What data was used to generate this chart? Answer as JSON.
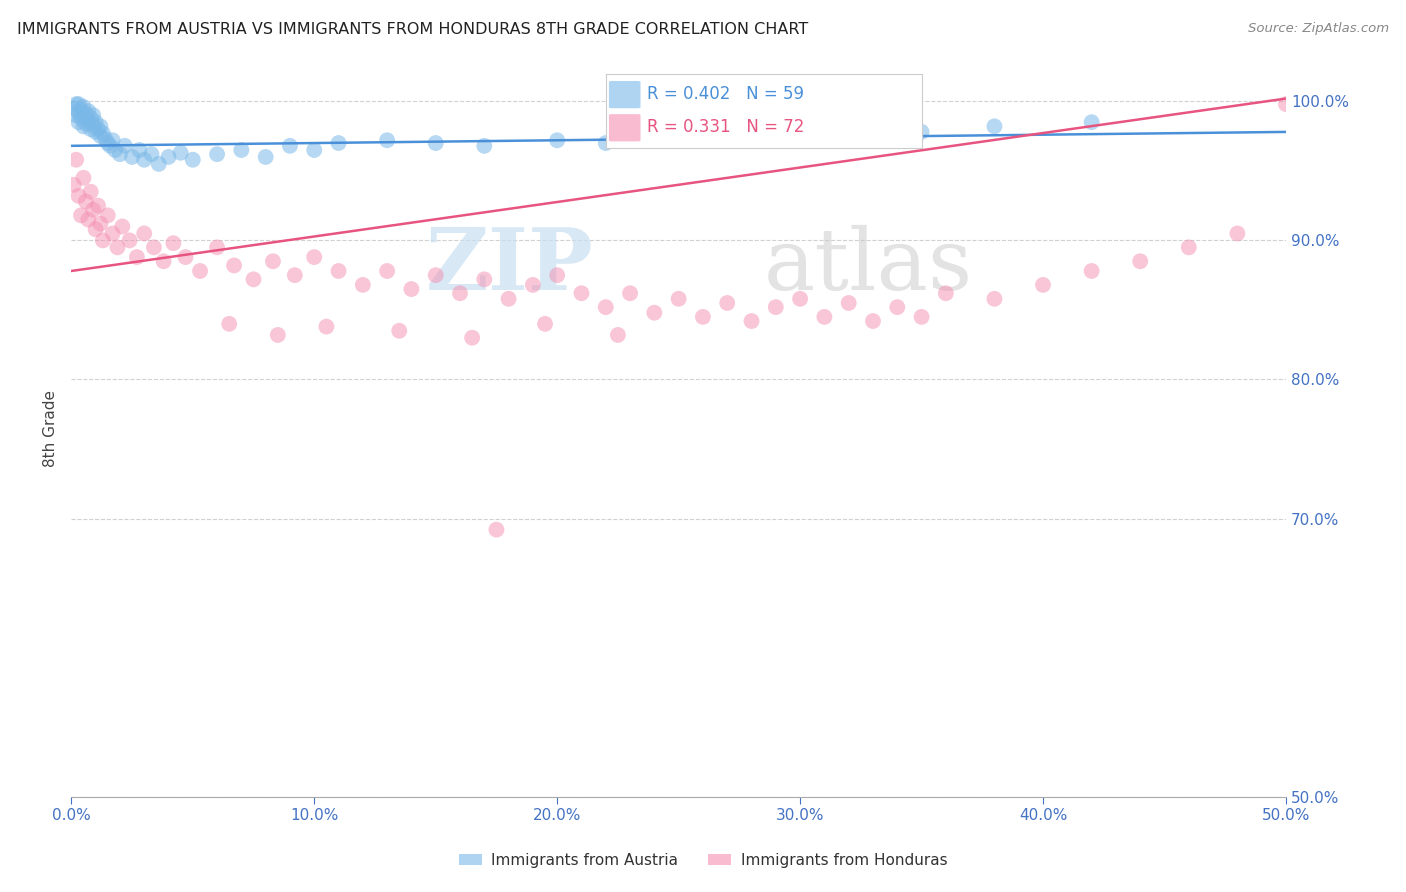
{
  "title": "IMMIGRANTS FROM AUSTRIA VS IMMIGRANTS FROM HONDURAS 8TH GRADE CORRELATION CHART",
  "source": "Source: ZipAtlas.com",
  "ylabel": "8th Grade",
  "austria_color": "#7ab8e8",
  "honduras_color": "#f48fb1",
  "austria_line_color": "#4a90d9",
  "honduras_line_color": "#e75480",
  "watermark_zip": "ZIP",
  "watermark_atlas": "atlas",
  "background_color": "#ffffff",
  "grid_color": "#cccccc",
  "title_color": "#222222",
  "tick_color": "#4472c4",
  "xlim": [
    0.0,
    0.5
  ],
  "ylim": [
    0.5,
    1.03
  ],
  "x_ticks": [
    0.0,
    0.1,
    0.2,
    0.3,
    0.4,
    0.5
  ],
  "y_ticks": [
    0.5,
    0.7,
    0.8,
    0.9,
    1.0
  ],
  "legend_austria_r": "0.402",
  "legend_austria_n": "59",
  "legend_honduras_r": "0.331",
  "legend_honduras_n": "72",
  "austria_line_x0": 0.0,
  "austria_line_x1": 0.5,
  "austria_line_y0": 0.968,
  "austria_line_y1": 0.978,
  "honduras_line_x0": 0.0,
  "honduras_line_x1": 0.5,
  "honduras_line_y0": 0.878,
  "honduras_line_y1": 1.002,
  "austria_scatter_x": [
    0.001,
    0.002,
    0.002,
    0.003,
    0.003,
    0.003,
    0.004,
    0.004,
    0.005,
    0.005,
    0.005,
    0.006,
    0.006,
    0.007,
    0.007,
    0.008,
    0.008,
    0.009,
    0.009,
    0.01,
    0.01,
    0.011,
    0.012,
    0.012,
    0.013,
    0.014,
    0.015,
    0.016,
    0.017,
    0.018,
    0.02,
    0.022,
    0.025,
    0.028,
    0.03,
    0.033,
    0.036,
    0.04,
    0.045,
    0.05,
    0.06,
    0.07,
    0.08,
    0.09,
    0.1,
    0.11,
    0.13,
    0.15,
    0.17,
    0.2,
    0.22,
    0.24,
    0.26,
    0.28,
    0.3,
    0.32,
    0.35,
    0.38,
    0.42
  ],
  "austria_scatter_y": [
    0.995,
    0.99,
    0.998,
    0.985,
    0.992,
    0.998,
    0.988,
    0.994,
    0.982,
    0.99,
    0.996,
    0.984,
    0.991,
    0.986,
    0.993,
    0.98,
    0.988,
    0.983,
    0.99,
    0.978,
    0.985,
    0.98,
    0.975,
    0.982,
    0.977,
    0.973,
    0.97,
    0.968,
    0.972,
    0.965,
    0.962,
    0.968,
    0.96,
    0.965,
    0.958,
    0.962,
    0.955,
    0.96,
    0.963,
    0.958,
    0.962,
    0.965,
    0.96,
    0.968,
    0.965,
    0.97,
    0.972,
    0.97,
    0.968,
    0.972,
    0.97,
    0.975,
    0.972,
    0.978,
    0.975,
    0.98,
    0.978,
    0.982,
    0.985
  ],
  "honduras_scatter_x": [
    0.001,
    0.002,
    0.003,
    0.004,
    0.005,
    0.006,
    0.007,
    0.008,
    0.009,
    0.01,
    0.011,
    0.012,
    0.013,
    0.015,
    0.017,
    0.019,
    0.021,
    0.024,
    0.027,
    0.03,
    0.034,
    0.038,
    0.042,
    0.047,
    0.053,
    0.06,
    0.067,
    0.075,
    0.083,
    0.092,
    0.1,
    0.11,
    0.12,
    0.13,
    0.14,
    0.15,
    0.16,
    0.17,
    0.18,
    0.19,
    0.2,
    0.21,
    0.22,
    0.23,
    0.24,
    0.25,
    0.26,
    0.27,
    0.28,
    0.29,
    0.3,
    0.31,
    0.32,
    0.33,
    0.34,
    0.35,
    0.36,
    0.38,
    0.4,
    0.42,
    0.44,
    0.46,
    0.48,
    0.5,
    0.065,
    0.085,
    0.105,
    0.135,
    0.165,
    0.195,
    0.225,
    0.175
  ],
  "honduras_scatter_y": [
    0.94,
    0.958,
    0.932,
    0.918,
    0.945,
    0.928,
    0.915,
    0.935,
    0.922,
    0.908,
    0.925,
    0.912,
    0.9,
    0.918,
    0.905,
    0.895,
    0.91,
    0.9,
    0.888,
    0.905,
    0.895,
    0.885,
    0.898,
    0.888,
    0.878,
    0.895,
    0.882,
    0.872,
    0.885,
    0.875,
    0.888,
    0.878,
    0.868,
    0.878,
    0.865,
    0.875,
    0.862,
    0.872,
    0.858,
    0.868,
    0.875,
    0.862,
    0.852,
    0.862,
    0.848,
    0.858,
    0.845,
    0.855,
    0.842,
    0.852,
    0.858,
    0.845,
    0.855,
    0.842,
    0.852,
    0.845,
    0.862,
    0.858,
    0.868,
    0.878,
    0.885,
    0.895,
    0.905,
    0.998,
    0.84,
    0.832,
    0.838,
    0.835,
    0.83,
    0.84,
    0.832,
    0.692
  ]
}
